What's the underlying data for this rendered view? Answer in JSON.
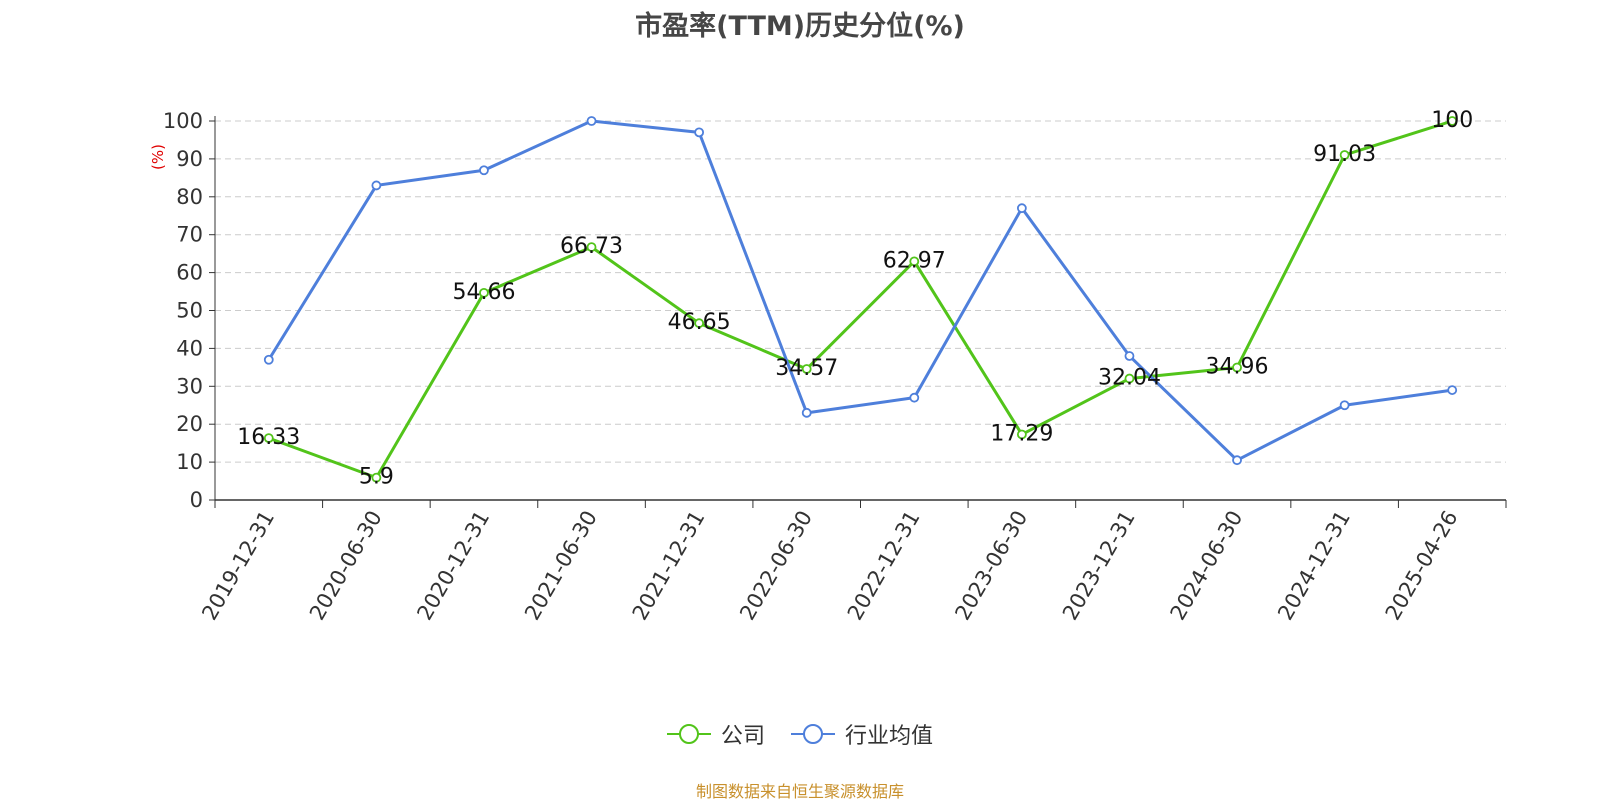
{
  "chart_data": {
    "type": "line",
    "title": "市盈率(TTM)历史分位(%)",
    "ylabel": "(%)",
    "xlabel": "",
    "categories": [
      "2019-12-31",
      "2020-06-30",
      "2020-12-31",
      "2021-06-30",
      "2021-12-31",
      "2022-06-30",
      "2022-12-31",
      "2023-06-30",
      "2023-12-31",
      "2024-06-30",
      "2024-12-31",
      "2025-04-26"
    ],
    "ylim": [
      0,
      100
    ],
    "yticks": [
      0,
      10,
      20,
      30,
      40,
      50,
      60,
      70,
      80,
      90,
      100
    ],
    "grid": true,
    "legend_position": "bottom",
    "series": [
      {
        "name": "公司",
        "color": "#52c41a",
        "show_labels": true,
        "values": [
          16.33,
          5.9,
          54.66,
          66.73,
          46.65,
          34.57,
          62.97,
          17.29,
          32.04,
          34.96,
          91.03,
          100
        ],
        "labels": [
          "16.33",
          "5.9",
          "54.66",
          "66.73",
          "46.65",
          "34.57",
          "62.97",
          "17.29",
          "32.04",
          "34.96",
          "91.03",
          "100"
        ]
      },
      {
        "name": "行业均值",
        "color": "#4e7fdb",
        "show_labels": false,
        "values": [
          37,
          83,
          87,
          100,
          97,
          23,
          27,
          77,
          38,
          10.5,
          25,
          29
        ]
      }
    ]
  },
  "source": "制图数据来自恒生聚源数据库"
}
